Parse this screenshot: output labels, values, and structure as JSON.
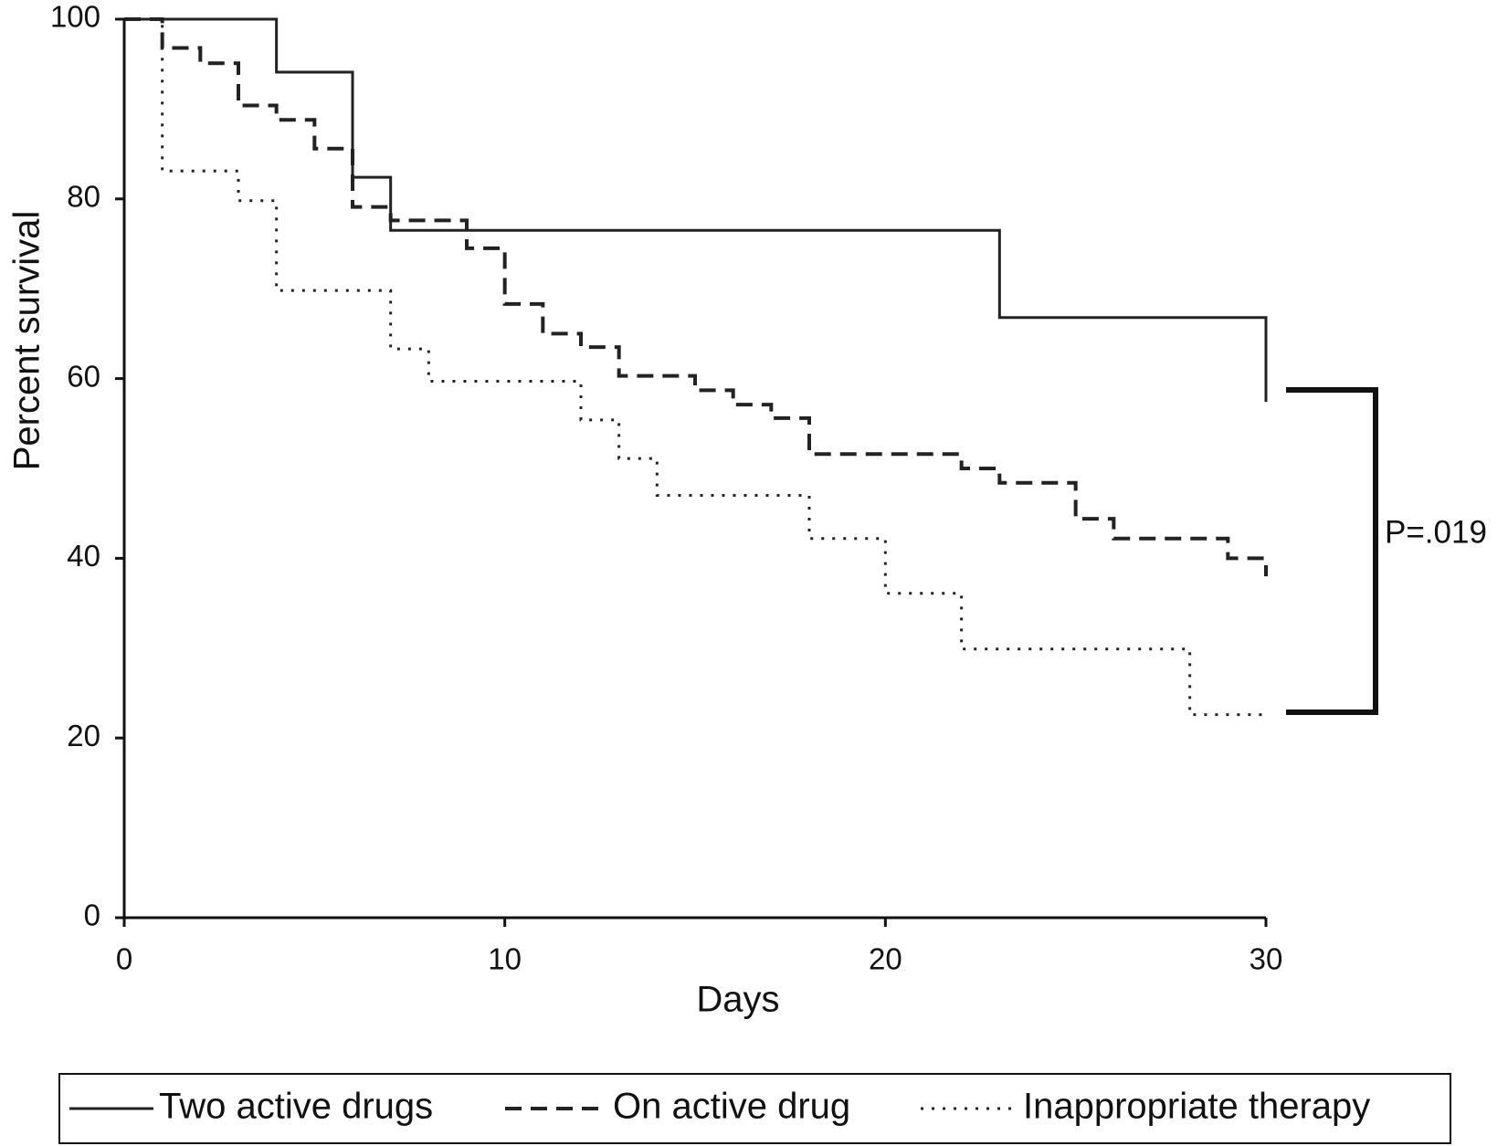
{
  "chart_data": {
    "type": "line",
    "drawstyle": "steps-post",
    "ylabel": "Percent survival",
    "xlabel": "Days",
    "xlim": [
      0,
      30
    ],
    "xticks": [
      0,
      10,
      20,
      30
    ],
    "ylim": [
      0,
      100
    ],
    "yticks": [
      0,
      20,
      40,
      60,
      80,
      100
    ],
    "legend": "bottom",
    "annotation": "P=.019",
    "series": [
      {
        "name": "Two active drugs",
        "color": "#222222",
        "dash": "solid",
        "x": [
          0,
          4,
          6,
          7,
          23,
          30
        ],
        "values": [
          100,
          94.1,
          82.4,
          76.5,
          66.8,
          57.4
        ]
      },
      {
        "name": "On active drug",
        "color": "#222222",
        "dash": "dashed",
        "x": [
          0,
          1,
          2,
          3,
          4,
          5,
          6,
          7,
          9,
          10,
          11,
          12,
          13,
          15,
          16,
          17,
          18,
          22,
          23,
          25,
          26,
          29,
          30
        ],
        "values": [
          100,
          96.8,
          95.1,
          90.4,
          88.8,
          85.6,
          79.1,
          77.6,
          74.5,
          68.3,
          65,
          63.5,
          60.3,
          58.7,
          57.1,
          55.6,
          51.6,
          50,
          48.4,
          44.4,
          42.2,
          40,
          38
        ]
      },
      {
        "name": "Inappropriate therapy",
        "color": "#222222",
        "dash": "dotted",
        "x": [
          0,
          1,
          3,
          4,
          7,
          8,
          12,
          13,
          14,
          18,
          20,
          22,
          28,
          30
        ],
        "values": [
          100,
          83.1,
          79.8,
          69.8,
          63.3,
          59.7,
          55.4,
          51.1,
          47,
          42.2,
          36.1,
          29.9,
          22.6,
          22.6
        ]
      }
    ]
  }
}
